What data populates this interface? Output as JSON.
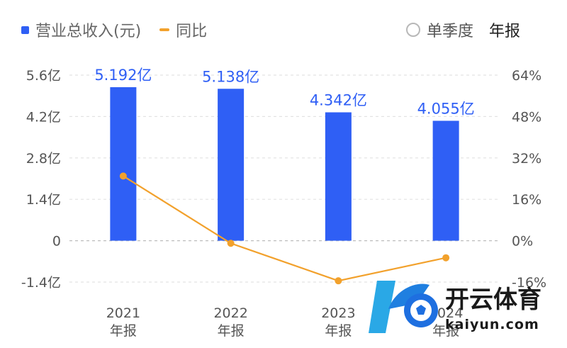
{
  "legend": {
    "bar_label": "营业总收入(元)",
    "line_label": "同比"
  },
  "toggle": {
    "quarterly_label": "单季度",
    "annual_label": "年报",
    "selected": "年报"
  },
  "watermark": {
    "brand_cn": "开云体育",
    "brand_en": "kaiyun.com"
  },
  "colors": {
    "bar": "#2f5ff5",
    "line": "#f2a12c",
    "bar_label": "#2f5ff5",
    "axis_text": "#555555"
  },
  "chart_data": {
    "type": "bar",
    "categories": [
      "2021",
      "2022",
      "2023",
      "2024"
    ],
    "category_sub_labels": [
      "年报",
      "年报",
      "年报",
      "年报"
    ],
    "series": [
      {
        "name": "营业总收入(元)",
        "type": "bar",
        "axis": "left",
        "values": [
          5.192,
          5.138,
          4.342,
          4.055
        ],
        "value_labels": [
          "5.192亿",
          "5.138亿",
          "4.342亿",
          "4.055亿"
        ]
      },
      {
        "name": "同比",
        "type": "line",
        "axis": "right",
        "values": [
          25,
          -1,
          -15.5,
          -6.6
        ]
      }
    ],
    "y_left": {
      "ticks": [
        5.6,
        4.2,
        2.8,
        1.4,
        0,
        -1.4
      ],
      "tick_labels": [
        "5.6亿",
        "4.2亿",
        "2.8亿",
        "1.4亿",
        "0",
        "-1.4亿"
      ],
      "ylim": [
        -1.4,
        5.6
      ]
    },
    "y_right": {
      "ticks": [
        64,
        48,
        32,
        16,
        0,
        -16
      ],
      "tick_labels": [
        "64%",
        "48%",
        "32%",
        "16%",
        "0%",
        "-16%"
      ],
      "ylim": [
        -16,
        64
      ]
    },
    "grid": "dashed-horizontal",
    "legend_position": "top-left"
  }
}
